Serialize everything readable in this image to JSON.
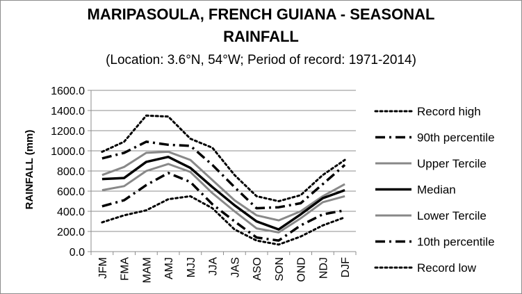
{
  "chart_data": {
    "type": "line",
    "title": "MARIPASOULA, FRENCH GUIANA - SEASONAL",
    "title_line2": "RAINFALL",
    "subtitle": "(Location: 3.6°N, 54°W; Period of record: 1971-2014)",
    "xlabel": "",
    "ylabel": "RAINFALL (mm)",
    "ylim": [
      0,
      1600
    ],
    "yticks": [
      "0.0",
      "200.0",
      "400.0",
      "600.0",
      "800.0",
      "1000.0",
      "1200.0",
      "1400.0",
      "1600.0"
    ],
    "grid": true,
    "legend_position": "right",
    "categories": [
      "JFM",
      "FMA",
      "MAM",
      "AMJ",
      "MJJ",
      "JJA",
      "JAS",
      "ASO",
      "SON",
      "OND",
      "NDJ",
      "DJF"
    ],
    "series": [
      {
        "name": "Record high",
        "color": "#000000",
        "style": "dotted",
        "values": [
          990,
          1090,
          1350,
          1340,
          1120,
          1030,
          760,
          550,
          500,
          560,
          760,
          910
        ]
      },
      {
        "name": "90th percentile",
        "color": "#000000",
        "style": "dashdot",
        "values": [
          925,
          980,
          1090,
          1060,
          1050,
          860,
          640,
          430,
          440,
          480,
          670,
          860
        ]
      },
      {
        "name": "Upper Tercile",
        "color": "#888888",
        "style": "solid",
        "values": [
          760,
          840,
          980,
          990,
          910,
          710,
          510,
          360,
          310,
          400,
          550,
          670
        ]
      },
      {
        "name": "Median",
        "color": "#000000",
        "style": "solid",
        "values": [
          720,
          730,
          890,
          940,
          830,
          640,
          460,
          300,
          220,
          370,
          530,
          610
        ]
      },
      {
        "name": "Lower Tercile",
        "color": "#888888",
        "style": "solid",
        "values": [
          610,
          650,
          800,
          870,
          790,
          580,
          400,
          230,
          190,
          330,
          490,
          550
        ]
      },
      {
        "name": "10th percentile",
        "color": "#000000",
        "style": "dashdot",
        "values": [
          450,
          510,
          660,
          780,
          690,
          470,
          300,
          140,
          110,
          260,
          370,
          410
        ]
      },
      {
        "name": "Record low",
        "color": "#000000",
        "style": "dotted",
        "values": [
          290,
          360,
          410,
          520,
          550,
          430,
          220,
          110,
          70,
          150,
          260,
          340
        ]
      }
    ]
  }
}
